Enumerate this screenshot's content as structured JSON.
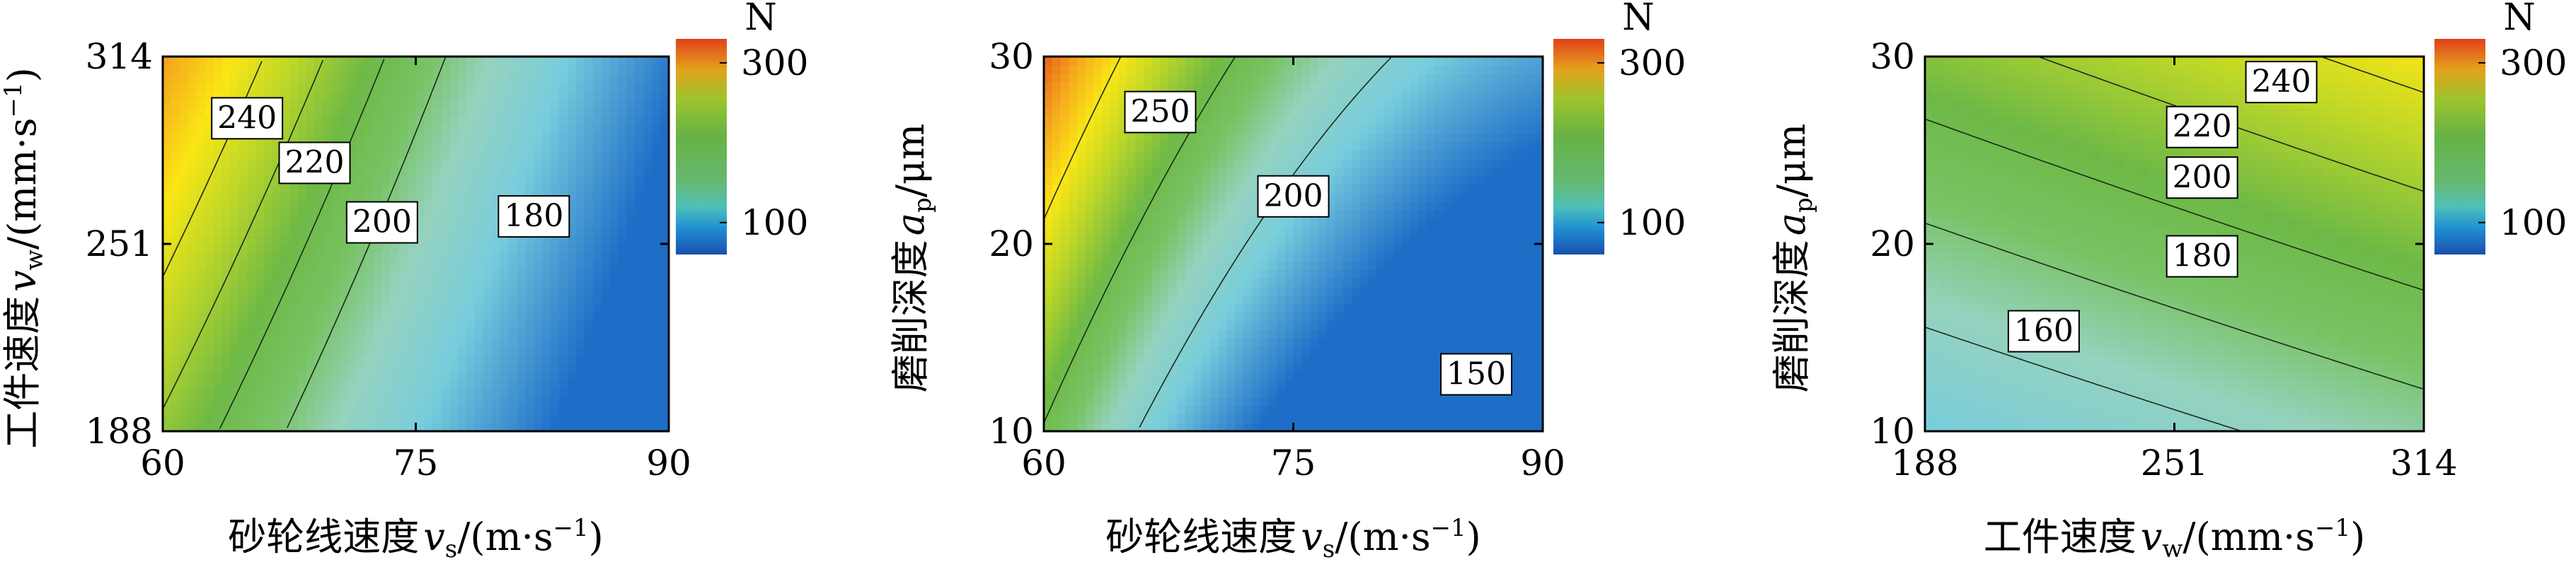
{
  "chart_data": [
    {
      "type": "heatmap",
      "subtype": "contour",
      "ylabel_parts": [
        "工件速度",
        "v",
        "w",
        "/(mm·s",
        "−1",
        ")"
      ],
      "xlabel_parts": [
        "砂轮线速度",
        "v",
        "s",
        "/(m·s",
        "−1",
        ")"
      ],
      "xlim": [
        60,
        90
      ],
      "ylim": [
        188,
        314
      ],
      "xticks": [
        60,
        75,
        90
      ],
      "yticks": [
        188,
        251,
        314
      ],
      "xtick_labels": [
        "60",
        "75",
        "90"
      ],
      "ytick_labels": [
        "188",
        "251",
        "314"
      ],
      "contour_levels": [
        240,
        220,
        200,
        180
      ],
      "contour_labels": [
        {
          "text": "240",
          "x": 65,
          "y": 293
        },
        {
          "text": "220",
          "x": 69,
          "y": 278
        },
        {
          "text": "200",
          "x": 73,
          "y": 258
        },
        {
          "text": "180",
          "x": 82,
          "y": 260
        }
      ],
      "colorbar": {
        "title": "N",
        "ticks": [
          "300",
          "100"
        ],
        "range": [
          60,
          330
        ]
      },
      "grid": false
    },
    {
      "type": "heatmap",
      "subtype": "contour",
      "ylabel_parts": [
        "磨削深度",
        "a",
        "p",
        "/μm",
        "",
        ""
      ],
      "xlabel_parts": [
        "砂轮线速度",
        "v",
        "s",
        "/(m·s",
        "−1",
        ")"
      ],
      "xlim": [
        60,
        90
      ],
      "ylim": [
        10,
        30
      ],
      "xticks": [
        60,
        75,
        90
      ],
      "yticks": [
        10,
        20,
        30
      ],
      "xtick_labels": [
        "60",
        "75",
        "90"
      ],
      "ytick_labels": [
        "10",
        "20",
        "30"
      ],
      "contour_levels": [
        250,
        200,
        150
      ],
      "contour_labels": [
        {
          "text": "250",
          "x": 67,
          "y": 27
        },
        {
          "text": "200",
          "x": 75,
          "y": 22.5
        },
        {
          "text": "150",
          "x": 86,
          "y": 13
        }
      ],
      "colorbar": {
        "title": "N",
        "ticks": [
          "300",
          "100"
        ],
        "range": [
          60,
          330
        ]
      },
      "grid": false
    },
    {
      "type": "heatmap",
      "subtype": "contour",
      "ylabel_parts": [
        "磨削深度",
        "a",
        "p",
        "/μm",
        "",
        ""
      ],
      "xlabel_parts": [
        "工件速度",
        "v",
        "w",
        "/(mm·s",
        "−1",
        ")"
      ],
      "xlim": [
        188,
        314
      ],
      "ylim": [
        10,
        30
      ],
      "xticks": [
        188,
        251,
        314
      ],
      "yticks": [
        10,
        20,
        30
      ],
      "xtick_labels": [
        "188",
        "251",
        "314"
      ],
      "ytick_labels": [
        "10",
        "20",
        "30"
      ],
      "contour_levels": [
        240,
        220,
        200,
        180,
        160
      ],
      "contour_labels": [
        {
          "text": "240",
          "x": 278,
          "y": 28.6
        },
        {
          "text": "220",
          "x": 258,
          "y": 26.2
        },
        {
          "text": "200",
          "x": 258,
          "y": 23.5
        },
        {
          "text": "180",
          "x": 258,
          "y": 19.3
        },
        {
          "text": "160",
          "x": 218,
          "y": 15.3
        }
      ],
      "colorbar": {
        "title": "N",
        "ticks": [
          "300",
          "100"
        ],
        "range": [
          60,
          330
        ]
      },
      "grid": false
    }
  ]
}
